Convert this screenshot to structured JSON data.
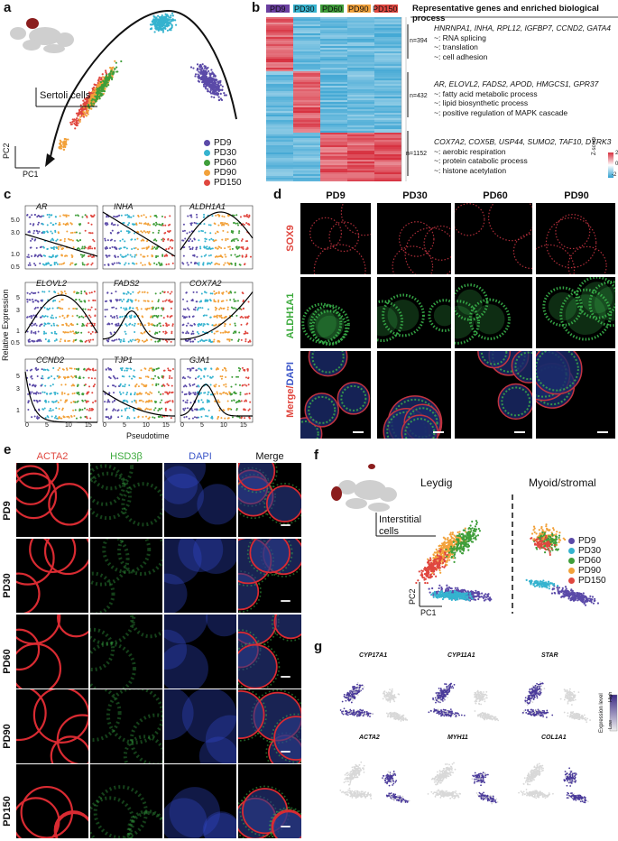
{
  "panel_letters": {
    "a": "a",
    "b": "b",
    "c": "c",
    "d": "d",
    "e": "e",
    "f": "f",
    "g": "g"
  },
  "colors": {
    "PD9": "#5b4aa8",
    "PD30": "#35b3cf",
    "PD60": "#3f9e3a",
    "PD90": "#f2a13a",
    "PD150": "#e0473f"
  },
  "panel_a": {
    "cell_label": "Sertoli cells",
    "pc1": "PC1",
    "pc2": "PC2",
    "legend": [
      "PD9",
      "PD30",
      "PD60",
      "PD90",
      "PD150"
    ]
  },
  "panel_b": {
    "columns": [
      "PD9",
      "PD30",
      "PD60",
      "PD90",
      "PD150"
    ],
    "header": "Representative genes and enriched biological process",
    "clusters": [
      {
        "n": "n=394",
        "genes": "HNRNPA1, INHA, RPL12, IGFBP7, CCND2, GATA4",
        "terms": [
          "~: RNA splicing",
          "~: translation",
          "~: cell adhesion"
        ]
      },
      {
        "n": "n=432",
        "genes": "AR, ELOVL2, FADS2, APOD, HMGCS1, GPR37",
        "terms": [
          "~: fatty acid metabolic process",
          "~: lipid biosynthetic process",
          "~: positive regulation of MAPK cascade"
        ]
      },
      {
        "n": "n=1152",
        "genes": "COX7A2, COX5B, USP44, SUMO2, TAF10, DYRK3",
        "terms": [
          "~: aerobic respiration",
          "~: protein catabolic process",
          "~: histone acetylation"
        ]
      }
    ],
    "zscore_label": "Z-score",
    "zscore_max": "2",
    "zscore_mid": "0",
    "zscore_min": "-2"
  },
  "panel_c": {
    "genes": [
      "AR",
      "INHA",
      "ALDH1A1",
      "ELOVL2",
      "FADS2",
      "COX7A2",
      "CCND2",
      "TJP1",
      "GJA1"
    ],
    "ylabel": "Relative Expression",
    "xlabel": "Pseudotime",
    "yticks_row1": [
      "5.0",
      "3.0",
      "1.0",
      "0.5"
    ],
    "yticks_row2": [
      "5",
      "3",
      "1",
      "0.5"
    ],
    "yticks_row3": [
      "5",
      "3",
      "1"
    ],
    "xticks": [
      "0",
      "5",
      "10",
      "15"
    ]
  },
  "panel_d": {
    "columns": [
      "PD9",
      "PD30",
      "PD60",
      "PD90"
    ],
    "rows": [
      "SOX9",
      "ALDH1A1",
      "Merge/DAPI"
    ],
    "merge_prefix": "Merge/",
    "merge_suffix": "DAPI"
  },
  "panel_e": {
    "columns": [
      "ACTA2",
      "HSD3β",
      "DAPI",
      "Merge"
    ],
    "rows": [
      "PD9",
      "PD30",
      "PD60",
      "PD90",
      "PD150"
    ]
  },
  "panel_f": {
    "cell_label_1": "Interstitial",
    "cell_label_2": "cells",
    "group_left": "Leydig",
    "group_right": "Myoid/stromal",
    "pc1": "PC1",
    "pc2": "PC2",
    "legend": [
      "PD9",
      "PD30",
      "PD60",
      "PD90",
      "PD150"
    ]
  },
  "panel_g": {
    "genes": [
      "CYP17A1",
      "CYP11A1",
      "STAR",
      "ACTA2",
      "MYH11",
      "COL1A1"
    ],
    "legend_title": "Expression level",
    "legend_high": "High",
    "legend_low": "Low"
  }
}
